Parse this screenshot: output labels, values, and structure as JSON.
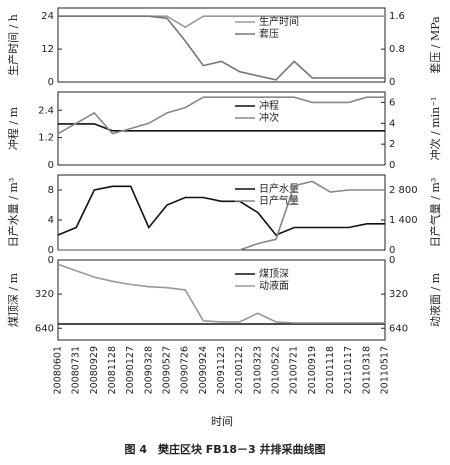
{
  "chart_data": {
    "type": "line",
    "x_label": "时间",
    "categories": [
      "20080601",
      "20080731",
      "20080929",
      "20081128",
      "20090127",
      "20090328",
      "20090527",
      "20090726",
      "20090924",
      "20091123",
      "20100122",
      "20100323",
      "20100522",
      "20100721",
      "20100919",
      "20101118",
      "20110117",
      "20110318",
      "20110517"
    ],
    "panels": [
      {
        "y_label": "生产时间 / h",
        "y2_label": "套压 / MPa",
        "ylim": [
          0,
          27
        ],
        "yticks": [
          0,
          12,
          24
        ],
        "y2lim": [
          0,
          1.8
        ],
        "y2ticks": [
          0,
          0.8,
          1.6
        ],
        "series": [
          {
            "name": "生产时间",
            "color": "#999999",
            "values": [
              24,
              24,
              24,
              24,
              24,
              24,
              24,
              20,
              24,
              24,
              24,
              24,
              24,
              24,
              24,
              24,
              24,
              24,
              24
            ]
          },
          {
            "name": "套压",
            "color": "#777777",
            "axis": "y2",
            "values": [
              1.6,
              1.6,
              1.6,
              1.6,
              1.6,
              1.6,
              1.55,
              1.0,
              0.4,
              0.5,
              0.25,
              0.15,
              0.05,
              0.5,
              0.1,
              0.1,
              0.1,
              0.1,
              0.1
            ]
          }
        ]
      },
      {
        "y_label": "冲程 / m",
        "y2_label": "冲次 / min⁻¹",
        "ylim": [
          0,
          3.2
        ],
        "yticks": [
          0,
          1.2,
          2.4
        ],
        "y2lim": [
          0,
          7
        ],
        "y2ticks": [
          0,
          2,
          4,
          6
        ],
        "series": [
          {
            "name": "冲程",
            "color": "#111111",
            "values": [
              1.8,
              1.8,
              1.8,
              1.5,
              1.5,
              1.5,
              1.5,
              1.5,
              1.5,
              1.5,
              1.5,
              1.5,
              1.5,
              1.5,
              1.5,
              1.5,
              1.5,
              1.5,
              1.5
            ]
          },
          {
            "name": "冲次",
            "color": "#888888",
            "axis": "y2",
            "values": [
              3,
              4,
              5,
              3,
              3.5,
              4,
              5,
              5.5,
              6.5,
              6.5,
              6.5,
              6.5,
              6.5,
              6.5,
              6,
              6,
              6,
              6.5,
              6.5
            ]
          }
        ]
      },
      {
        "y_label": "日产水量 / m³",
        "y2_label": "日产气量 / m³",
        "ylim": [
          0,
          10
        ],
        "yticks": [
          0,
          4,
          8
        ],
        "y2lim": [
          0,
          3500
        ],
        "y2ticks": [
          0,
          {
            "value": 1400,
            "label": "1 400"
          },
          {
            "value": 2800,
            "label": "2 800"
          }
        ],
        "series": [
          {
            "name": "日产水量",
            "color": "#111111",
            "values": [
              2,
              3,
              8,
              8.5,
              8.5,
              3,
              6,
              7,
              7,
              6.5,
              6.5,
              5,
              2,
              3,
              3,
              3,
              3,
              3.5,
              3.5
            ]
          },
          {
            "name": "日产气量",
            "color": "#888888",
            "axis": "y2",
            "values": [
              0,
              0,
              0,
              0,
              0,
              0,
              0,
              0,
              0,
              0,
              0,
              300,
              500,
              3000,
              3200,
              2700,
              2800,
              2800,
              2800
            ]
          }
        ]
      },
      {
        "y_label": "煤顶深 / m",
        "y2_label": "动液面 / m",
        "y_inverted": true,
        "ylim": [
          0,
          750
        ],
        "yticks": [
          0,
          320,
          640
        ],
        "y2lim": [
          0,
          750
        ],
        "y2ticks": [
          0,
          320,
          640
        ],
        "series": [
          {
            "name": "煤顶深",
            "color": "#111111",
            "values": [
              600,
              600,
              600,
              600,
              600,
              600,
              600,
              600,
              600,
              600,
              600,
              600,
              600,
              600,
              600,
              600,
              600,
              600,
              600
            ]
          },
          {
            "name": "动液面",
            "color": "#999999",
            "axis": "y2",
            "values": [
              40,
              100,
              160,
              200,
              230,
              250,
              260,
              280,
              570,
              580,
              580,
              500,
              580,
              590,
              590,
              590,
              590,
              590,
              590
            ]
          }
        ]
      }
    ]
  },
  "caption": "图 4　樊庄区块 FB18－3 井排采曲线图"
}
